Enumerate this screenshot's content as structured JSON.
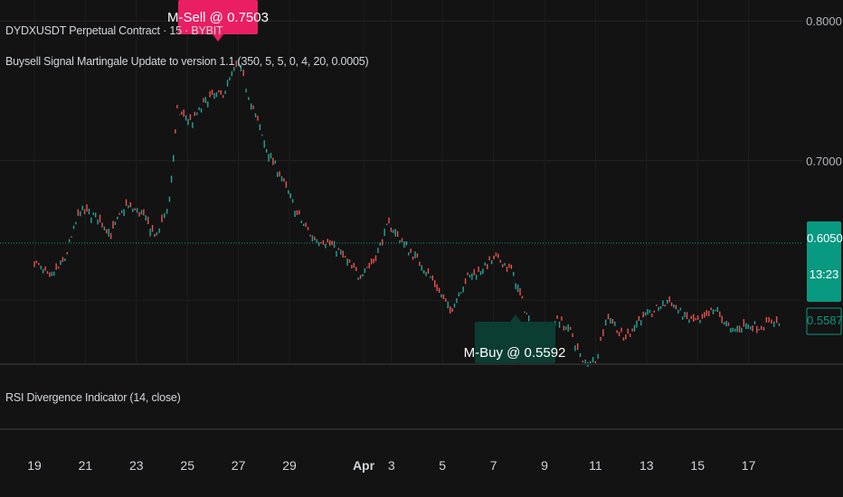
{
  "chart": {
    "symbol_title": "DYDXUSDT Perpetual Contract · 15 · BYBIT",
    "indicator_label": "Buysell Signal Martingale Update to version 1.1 (350, 5, 5, 0, 4, 20, 0.0005)",
    "rsi_label": "RSI Divergence Indicator (14, close)",
    "sell_signal_label": "M-Sell @ 0.7503",
    "buy_signal_label": "M-Buy @ 0.5592",
    "current_price": "0.6050",
    "countdown": "13:23",
    "secondary_price": "0.5587",
    "colors": {
      "background": "#131313",
      "up": "#26a69a",
      "down": "#ef5350",
      "sell_label": "#e91e63",
      "buy_label": "#0b3d33",
      "price_tag": "#089981"
    }
  },
  "chart_data": {
    "type": "line",
    "title": "DYDXUSDT Perpetual Contract · 15 · BYBIT",
    "ylim": [
      0.555,
      0.815
    ],
    "y_ticks": [
      "0.8000",
      "0.7000"
    ],
    "x_tick_labels": [
      "19",
      "21",
      "23",
      "25",
      "27",
      "29",
      "Apr",
      "3",
      "5",
      "7",
      "9",
      "11",
      "13",
      "15",
      "17"
    ],
    "grid": true,
    "series": [
      {
        "values": [
          [
            19,
            0.628
          ],
          [
            19.6,
            0.615
          ],
          [
            20.2,
            0.63
          ],
          [
            20.8,
            0.665
          ],
          [
            21.4,
            0.66
          ],
          [
            22.0,
            0.648
          ],
          [
            22.6,
            0.668
          ],
          [
            23.2,
            0.662
          ],
          [
            23.8,
            0.645
          ],
          [
            24.3,
            0.672
          ],
          [
            24.6,
            0.735
          ],
          [
            25.2,
            0.728
          ],
          [
            25.8,
            0.745
          ],
          [
            26.4,
            0.748
          ],
          [
            27.0,
            0.77
          ],
          [
            27.5,
            0.742
          ],
          [
            28.1,
            0.708
          ],
          [
            28.7,
            0.688
          ],
          [
            29.3,
            0.662
          ],
          [
            29.9,
            0.645
          ],
          [
            30.5,
            0.642
          ],
          [
            31.1,
            0.632
          ],
          [
            31.7,
            0.618
          ],
          [
            32.3,
            0.628
          ],
          [
            32.9,
            0.655
          ],
          [
            33.5,
            0.64
          ],
          [
            34.1,
            0.628
          ],
          [
            34.7,
            0.612
          ],
          [
            35.3,
            0.592
          ],
          [
            35.9,
            0.615
          ],
          [
            36.5,
            0.622
          ],
          [
            37.1,
            0.63
          ],
          [
            37.7,
            0.622
          ],
          [
            38.3,
            0.59
          ],
          [
            38.9,
            0.565
          ],
          [
            39.5,
            0.588
          ],
          [
            40.1,
            0.575
          ],
          [
            40.5,
            0.555
          ],
          [
            41.0,
            0.558
          ],
          [
            41.5,
            0.59
          ],
          [
            42.1,
            0.572
          ],
          [
            42.7,
            0.586
          ],
          [
            43.3,
            0.592
          ],
          [
            43.9,
            0.6
          ],
          [
            44.5,
            0.588
          ],
          [
            45.1,
            0.584
          ],
          [
            45.7,
            0.594
          ],
          [
            46.3,
            0.578
          ],
          [
            46.9,
            0.582
          ],
          [
            47.5,
            0.581
          ],
          [
            47.9,
            0.586
          ],
          [
            48.3,
            0.583
          ]
        ]
      }
    ]
  }
}
